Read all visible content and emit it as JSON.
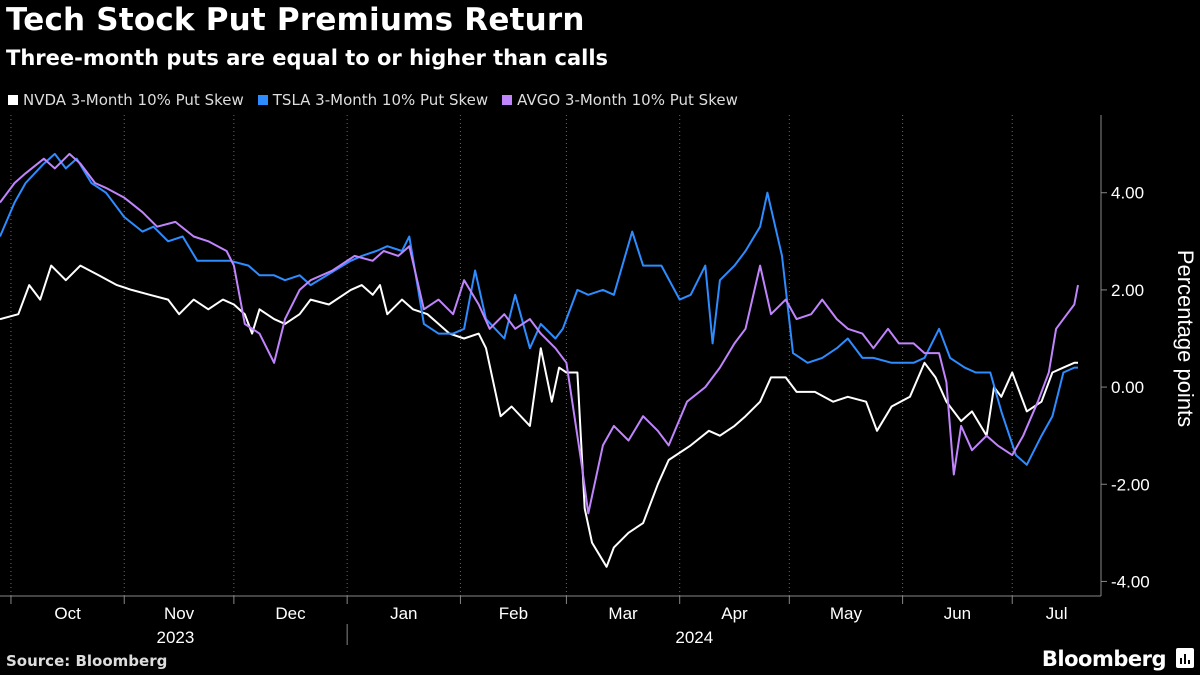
{
  "header": {
    "title": "Tech Stock Put Premiums Return",
    "subtitle": "Three-month puts are equal to or higher than calls"
  },
  "footer": {
    "source": "Source: Bloomberg",
    "brand": "Bloomberg"
  },
  "chart_data": {
    "type": "line",
    "ylabel": "Percentage points",
    "ylim": [
      -4.3,
      5.6
    ],
    "y_ticks": [
      4,
      2,
      0,
      -2,
      -4
    ],
    "y_tick_labels": [
      "4.00",
      "2.00",
      "0.00",
      "-2.00",
      "-4.00"
    ],
    "x_range": [
      "2023-09-28",
      "2024-07-19"
    ],
    "month_labels": [
      {
        "label": "Oct",
        "date": "2023-10-01"
      },
      {
        "label": "Nov",
        "date": "2023-11-01"
      },
      {
        "label": "Dec",
        "date": "2023-12-01"
      },
      {
        "label": "Jan",
        "date": "2024-01-01"
      },
      {
        "label": "Feb",
        "date": "2024-02-01"
      },
      {
        "label": "Mar",
        "date": "2024-03-01"
      },
      {
        "label": "Apr",
        "date": "2024-04-01"
      },
      {
        "label": "May",
        "date": "2024-05-01"
      },
      {
        "label": "Jun",
        "date": "2024-06-01"
      },
      {
        "label": "Jul",
        "date": "2024-07-01"
      }
    ],
    "year_labels": [
      {
        "label": "2023",
        "date": "2023-11-15"
      },
      {
        "label": "2024",
        "date": "2024-04-05"
      }
    ],
    "year_divider": "2024-01-01",
    "grid": "vertical dotted at month starts",
    "legend_position": "top-left",
    "series": [
      {
        "name": "NVDA 3-Month 10% Put Skew",
        "color": "#ffffff",
        "points": [
          [
            "2023-09-28",
            1.4
          ],
          [
            "2023-10-03",
            1.5
          ],
          [
            "2023-10-06",
            2.1
          ],
          [
            "2023-10-09",
            1.8
          ],
          [
            "2023-10-12",
            2.5
          ],
          [
            "2023-10-16",
            2.2
          ],
          [
            "2023-10-20",
            2.5
          ],
          [
            "2023-10-25",
            2.3
          ],
          [
            "2023-10-30",
            2.1
          ],
          [
            "2023-11-03",
            2.0
          ],
          [
            "2023-11-08",
            1.9
          ],
          [
            "2023-11-13",
            1.8
          ],
          [
            "2023-11-16",
            1.5
          ],
          [
            "2023-11-20",
            1.8
          ],
          [
            "2023-11-24",
            1.6
          ],
          [
            "2023-11-28",
            1.8
          ],
          [
            "2023-12-01",
            1.7
          ],
          [
            "2023-12-04",
            1.5
          ],
          [
            "2023-12-06",
            1.1
          ],
          [
            "2023-12-08",
            1.6
          ],
          [
            "2023-12-12",
            1.4
          ],
          [
            "2023-12-15",
            1.3
          ],
          [
            "2023-12-19",
            1.5
          ],
          [
            "2023-12-22",
            1.8
          ],
          [
            "2023-12-27",
            1.7
          ],
          [
            "2024-01-02",
            2.0
          ],
          [
            "2024-01-05",
            2.1
          ],
          [
            "2024-01-08",
            1.9
          ],
          [
            "2024-01-10",
            2.1
          ],
          [
            "2024-01-12",
            1.5
          ],
          [
            "2024-01-16",
            1.8
          ],
          [
            "2024-01-19",
            1.6
          ],
          [
            "2024-01-23",
            1.5
          ],
          [
            "2024-01-26",
            1.3
          ],
          [
            "2024-01-29",
            1.1
          ],
          [
            "2024-02-02",
            1.0
          ],
          [
            "2024-02-06",
            1.1
          ],
          [
            "2024-02-08",
            0.8
          ],
          [
            "2024-02-12",
            -0.6
          ],
          [
            "2024-02-15",
            -0.4
          ],
          [
            "2024-02-20",
            -0.8
          ],
          [
            "2024-02-23",
            0.8
          ],
          [
            "2024-02-26",
            -0.3
          ],
          [
            "2024-02-28",
            0.4
          ],
          [
            "2024-03-01",
            0.3
          ],
          [
            "2024-03-04",
            0.3
          ],
          [
            "2024-03-06",
            -2.5
          ],
          [
            "2024-03-08",
            -3.2
          ],
          [
            "2024-03-12",
            -3.7
          ],
          [
            "2024-03-14",
            -3.3
          ],
          [
            "2024-03-18",
            -3.0
          ],
          [
            "2024-03-22",
            -2.8
          ],
          [
            "2024-03-26",
            -2.0
          ],
          [
            "2024-03-29",
            -1.5
          ],
          [
            "2024-04-04",
            -1.2
          ],
          [
            "2024-04-09",
            -0.9
          ],
          [
            "2024-04-12",
            -1.0
          ],
          [
            "2024-04-16",
            -0.8
          ],
          [
            "2024-04-19",
            -0.6
          ],
          [
            "2024-04-23",
            -0.3
          ],
          [
            "2024-04-26",
            0.2
          ],
          [
            "2024-04-30",
            0.2
          ],
          [
            "2024-05-03",
            -0.1
          ],
          [
            "2024-05-08",
            -0.1
          ],
          [
            "2024-05-13",
            -0.3
          ],
          [
            "2024-05-17",
            -0.2
          ],
          [
            "2024-05-22",
            -0.3
          ],
          [
            "2024-05-25",
            -0.9
          ],
          [
            "2024-05-29",
            -0.4
          ],
          [
            "2024-06-03",
            -0.2
          ],
          [
            "2024-06-07",
            0.5
          ],
          [
            "2024-06-10",
            0.2
          ],
          [
            "2024-06-13",
            -0.3
          ],
          [
            "2024-06-17",
            -0.7
          ],
          [
            "2024-06-20",
            -0.5
          ],
          [
            "2024-06-24",
            -1.0
          ],
          [
            "2024-06-26",
            0.0
          ],
          [
            "2024-06-28",
            -0.2
          ],
          [
            "2024-07-01",
            0.3
          ],
          [
            "2024-07-03",
            -0.1
          ],
          [
            "2024-07-05",
            -0.5
          ],
          [
            "2024-07-09",
            -0.3
          ],
          [
            "2024-07-12",
            0.3
          ],
          [
            "2024-07-15",
            0.4
          ],
          [
            "2024-07-18",
            0.5
          ],
          [
            "2024-07-19",
            0.5
          ]
        ]
      },
      {
        "name": "TSLA 3-Month 10% Put Skew",
        "color": "#2d8cff",
        "points": [
          [
            "2023-09-28",
            3.1
          ],
          [
            "2023-10-02",
            3.8
          ],
          [
            "2023-10-05",
            4.2
          ],
          [
            "2023-10-10",
            4.6
          ],
          [
            "2023-10-13",
            4.8
          ],
          [
            "2023-10-16",
            4.5
          ],
          [
            "2023-10-19",
            4.7
          ],
          [
            "2023-10-23",
            4.2
          ],
          [
            "2023-10-27",
            4.0
          ],
          [
            "2023-11-01",
            3.5
          ],
          [
            "2023-11-06",
            3.2
          ],
          [
            "2023-11-09",
            3.3
          ],
          [
            "2023-11-13",
            3.0
          ],
          [
            "2023-11-17",
            3.1
          ],
          [
            "2023-11-21",
            2.6
          ],
          [
            "2023-11-27",
            2.6
          ],
          [
            "2023-11-30",
            2.6
          ],
          [
            "2023-12-05",
            2.5
          ],
          [
            "2023-12-08",
            2.3
          ],
          [
            "2023-12-12",
            2.3
          ],
          [
            "2023-12-15",
            2.2
          ],
          [
            "2023-12-19",
            2.3
          ],
          [
            "2023-12-22",
            2.1
          ],
          [
            "2024-01-02",
            2.6
          ],
          [
            "2024-01-05",
            2.7
          ],
          [
            "2024-01-09",
            2.8
          ],
          [
            "2024-01-12",
            2.9
          ],
          [
            "2024-01-16",
            2.8
          ],
          [
            "2024-01-18",
            3.1
          ],
          [
            "2024-01-22",
            1.3
          ],
          [
            "2024-01-26",
            1.1
          ],
          [
            "2024-01-30",
            1.1
          ],
          [
            "2024-02-02",
            1.2
          ],
          [
            "2024-02-05",
            2.4
          ],
          [
            "2024-02-08",
            1.4
          ],
          [
            "2024-02-13",
            1.0
          ],
          [
            "2024-02-16",
            1.9
          ],
          [
            "2024-02-20",
            0.8
          ],
          [
            "2024-02-23",
            1.3
          ],
          [
            "2024-02-27",
            1.0
          ],
          [
            "2024-02-29",
            1.2
          ],
          [
            "2024-03-04",
            2.0
          ],
          [
            "2024-03-07",
            1.9
          ],
          [
            "2024-03-11",
            2.0
          ],
          [
            "2024-03-14",
            1.9
          ],
          [
            "2024-03-19",
            3.2
          ],
          [
            "2024-03-22",
            2.5
          ],
          [
            "2024-03-27",
            2.5
          ],
          [
            "2024-04-01",
            1.8
          ],
          [
            "2024-04-04",
            1.9
          ],
          [
            "2024-04-08",
            2.5
          ],
          [
            "2024-04-10",
            0.9
          ],
          [
            "2024-04-12",
            2.2
          ],
          [
            "2024-04-16",
            2.5
          ],
          [
            "2024-04-19",
            2.8
          ],
          [
            "2024-04-23",
            3.3
          ],
          [
            "2024-04-25",
            4.0
          ],
          [
            "2024-04-29",
            2.7
          ],
          [
            "2024-05-02",
            0.7
          ],
          [
            "2024-05-06",
            0.5
          ],
          [
            "2024-05-10",
            0.6
          ],
          [
            "2024-05-14",
            0.8
          ],
          [
            "2024-05-17",
            1.0
          ],
          [
            "2024-05-21",
            0.6
          ],
          [
            "2024-05-24",
            0.6
          ],
          [
            "2024-05-29",
            0.5
          ],
          [
            "2024-06-04",
            0.5
          ],
          [
            "2024-06-07",
            0.6
          ],
          [
            "2024-06-11",
            1.2
          ],
          [
            "2024-06-14",
            0.6
          ],
          [
            "2024-06-18",
            0.4
          ],
          [
            "2024-06-21",
            0.3
          ],
          [
            "2024-06-25",
            0.3
          ],
          [
            "2024-06-28",
            -0.5
          ],
          [
            "2024-07-02",
            -1.4
          ],
          [
            "2024-07-05",
            -1.6
          ],
          [
            "2024-07-09",
            -1.0
          ],
          [
            "2024-07-12",
            -0.6
          ],
          [
            "2024-07-15",
            0.3
          ],
          [
            "2024-07-18",
            0.4
          ],
          [
            "2024-07-19",
            0.4
          ]
        ]
      },
      {
        "name": "AVGO 3-Month 10% Put Skew",
        "color": "#c084fc",
        "points": [
          [
            "2023-09-28",
            3.8
          ],
          [
            "2023-10-02",
            4.2
          ],
          [
            "2023-10-05",
            4.4
          ],
          [
            "2023-10-10",
            4.7
          ],
          [
            "2023-10-13",
            4.5
          ],
          [
            "2023-10-17",
            4.8
          ],
          [
            "2023-10-20",
            4.6
          ],
          [
            "2023-10-24",
            4.2
          ],
          [
            "2023-10-27",
            4.1
          ],
          [
            "2023-11-01",
            3.9
          ],
          [
            "2023-11-06",
            3.6
          ],
          [
            "2023-11-10",
            3.3
          ],
          [
            "2023-11-15",
            3.4
          ],
          [
            "2023-11-20",
            3.1
          ],
          [
            "2023-11-24",
            3.0
          ],
          [
            "2023-11-29",
            2.8
          ],
          [
            "2023-12-01",
            2.5
          ],
          [
            "2023-12-04",
            1.3
          ],
          [
            "2023-12-08",
            1.1
          ],
          [
            "2023-12-12",
            0.5
          ],
          [
            "2023-12-15",
            1.4
          ],
          [
            "2023-12-19",
            2.0
          ],
          [
            "2023-12-22",
            2.2
          ],
          [
            "2023-12-28",
            2.4
          ],
          [
            "2024-01-03",
            2.7
          ],
          [
            "2024-01-08",
            2.6
          ],
          [
            "2024-01-11",
            2.8
          ],
          [
            "2024-01-15",
            2.7
          ],
          [
            "2024-01-18",
            2.9
          ],
          [
            "2024-01-22",
            1.6
          ],
          [
            "2024-01-26",
            1.8
          ],
          [
            "2024-01-30",
            1.5
          ],
          [
            "2024-02-02",
            2.2
          ],
          [
            "2024-02-06",
            1.7
          ],
          [
            "2024-02-09",
            1.2
          ],
          [
            "2024-02-13",
            1.5
          ],
          [
            "2024-02-16",
            1.2
          ],
          [
            "2024-02-20",
            1.4
          ],
          [
            "2024-02-23",
            1.1
          ],
          [
            "2024-02-27",
            0.8
          ],
          [
            "2024-03-01",
            0.5
          ],
          [
            "2024-03-05",
            -1.5
          ],
          [
            "2024-03-07",
            -2.6
          ],
          [
            "2024-03-11",
            -1.2
          ],
          [
            "2024-03-14",
            -0.8
          ],
          [
            "2024-03-18",
            -1.1
          ],
          [
            "2024-03-22",
            -0.6
          ],
          [
            "2024-03-26",
            -0.9
          ],
          [
            "2024-03-29",
            -1.2
          ],
          [
            "2024-04-03",
            -0.3
          ],
          [
            "2024-04-08",
            0.0
          ],
          [
            "2024-04-12",
            0.4
          ],
          [
            "2024-04-16",
            0.9
          ],
          [
            "2024-04-19",
            1.2
          ],
          [
            "2024-04-23",
            2.5
          ],
          [
            "2024-04-26",
            1.5
          ],
          [
            "2024-04-30",
            1.8
          ],
          [
            "2024-05-03",
            1.4
          ],
          [
            "2024-05-07",
            1.5
          ],
          [
            "2024-05-10",
            1.8
          ],
          [
            "2024-05-14",
            1.4
          ],
          [
            "2024-05-17",
            1.2
          ],
          [
            "2024-05-21",
            1.1
          ],
          [
            "2024-05-24",
            0.8
          ],
          [
            "2024-05-28",
            1.2
          ],
          [
            "2024-05-31",
            0.9
          ],
          [
            "2024-06-04",
            0.9
          ],
          [
            "2024-06-07",
            0.7
          ],
          [
            "2024-06-11",
            0.7
          ],
          [
            "2024-06-13",
            0.1
          ],
          [
            "2024-06-15",
            -1.8
          ],
          [
            "2024-06-17",
            -0.8
          ],
          [
            "2024-06-20",
            -1.3
          ],
          [
            "2024-06-24",
            -1.0
          ],
          [
            "2024-06-27",
            -1.2
          ],
          [
            "2024-07-01",
            -1.4
          ],
          [
            "2024-07-04",
            -1.0
          ],
          [
            "2024-07-08",
            -0.3
          ],
          [
            "2024-07-11",
            0.3
          ],
          [
            "2024-07-13",
            1.2
          ],
          [
            "2024-07-16",
            1.5
          ],
          [
            "2024-07-18",
            1.7
          ],
          [
            "2024-07-19",
            2.1
          ]
        ]
      }
    ]
  }
}
